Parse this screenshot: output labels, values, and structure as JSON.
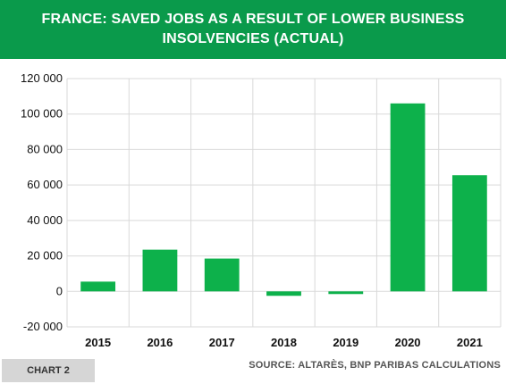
{
  "header": {
    "title": "FRANCE: SAVED JOBS AS A RESULT OF LOWER BUSINESS INSOLVENCIES (ACTUAL)"
  },
  "footer": {
    "chart_label": "CHART 2",
    "source": "SOURCE: ALTARÈS, BNP PARIBAS CALCULATIONS"
  },
  "colors": {
    "bar": "#0db14b",
    "header": "#0a9a4b",
    "grid": "#d9d9d9"
  },
  "chart_data": {
    "type": "bar",
    "title": "FRANCE: SAVED JOBS AS A RESULT OF LOWER BUSINESS INSOLVENCIES (ACTUAL)",
    "categories": [
      "2015",
      "2016",
      "2017",
      "2018",
      "2019",
      "2020",
      "2021"
    ],
    "values": [
      5500,
      23500,
      18500,
      -2500,
      -1500,
      106000,
      65500
    ],
    "ylim": [
      -20000,
      120000
    ],
    "yticks": [
      -20000,
      0,
      20000,
      40000,
      60000,
      80000,
      100000,
      120000
    ],
    "ytick_labels": [
      "-20 000",
      "0",
      "20 000",
      "40 000",
      "60 000",
      "80 000",
      "100 000",
      "120 000"
    ],
    "grid": true,
    "legend": "none"
  }
}
